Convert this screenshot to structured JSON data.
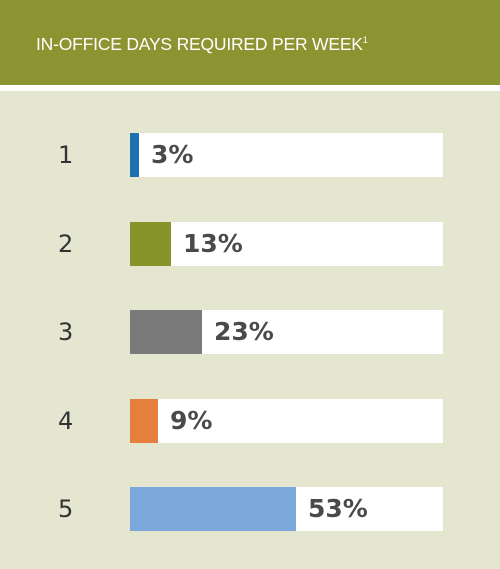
{
  "header": {
    "title": "IN-OFFICE DAYS REQUIRED PER WEEK",
    "footnote": "1"
  },
  "colors": {
    "header_bg": "#8c9331",
    "panel_bg": "#e4e6cf",
    "track_bg": "#ffffff"
  },
  "chart_data": {
    "type": "bar",
    "orientation": "horizontal",
    "title": "IN-OFFICE DAYS REQUIRED PER WEEK",
    "categories": [
      "1",
      "2",
      "3",
      "4",
      "5"
    ],
    "values": [
      3,
      13,
      23,
      9,
      53
    ],
    "value_labels": [
      "3%",
      "13%",
      "23%",
      "9%",
      "53%"
    ],
    "bar_colors": [
      "#1f6fb3",
      "#87942c",
      "#7a7a7a",
      "#e3803d",
      "#7aa8db"
    ],
    "xlim": [
      0,
      100
    ],
    "grid": false
  }
}
